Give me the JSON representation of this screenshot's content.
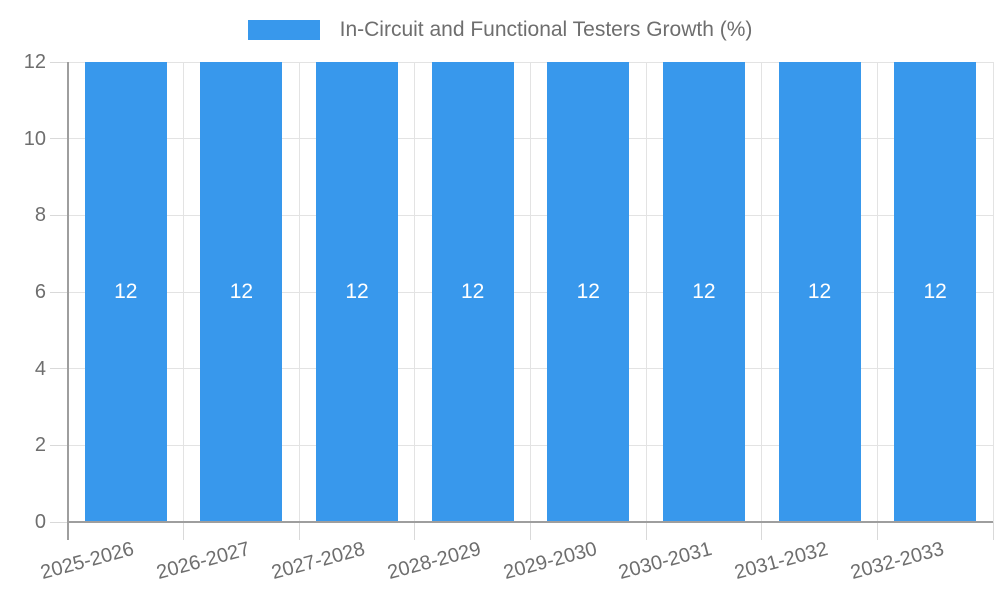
{
  "chart_data": {
    "type": "bar",
    "title": "In-Circuit and Functional Testers Growth (%)",
    "categories": [
      "2025-2026",
      "2026-2027",
      "2027-2028",
      "2028-2029",
      "2029-2030",
      "2030-2031",
      "2031-2032",
      "2032-2033"
    ],
    "series": [
      {
        "name": "In-Circuit and Functional Testers Growth (%)",
        "values": [
          12,
          12,
          12,
          12,
          12,
          12,
          12,
          12
        ]
      }
    ],
    "value_labels": [
      "12",
      "12",
      "12",
      "12",
      "12",
      "12",
      "12",
      "12"
    ],
    "xlabel": "",
    "ylabel": "",
    "ylim": [
      0,
      12
    ],
    "yticks": [
      0,
      2,
      4,
      6,
      8,
      10,
      12
    ],
    "grid": true,
    "legend_position": "top-center",
    "colors": {
      "bar": "#3898ec",
      "grid": "#e3e3e3",
      "tick": "#d9d9d9",
      "axis": "#9e9e9e",
      "label_text": "#6e6e6e",
      "value_label": "#ffffff",
      "background": "#ffffff"
    }
  },
  "legend": {
    "label": "In-Circuit and Functional Testers Growth (%)"
  }
}
